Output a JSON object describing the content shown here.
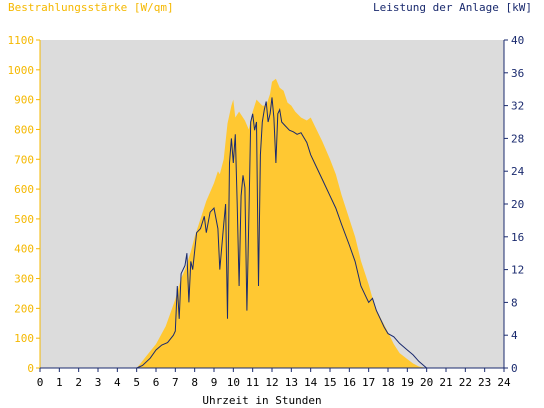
{
  "chart_data": {
    "type": "area",
    "left_axis_label": "Bestrahlungsstärke [W/qm]",
    "right_axis_label": "Leistung der Anlage [kW]",
    "xlabel": "Uhrzeit in Stunden",
    "xlim": [
      0,
      24
    ],
    "ylim_left": [
      0,
      1100
    ],
    "ylim_right": [
      0,
      40
    ],
    "x_ticks": [
      "0",
      "1",
      "2",
      "3",
      "4",
      "5",
      "6",
      "7",
      "8",
      "9",
      "10",
      "11",
      "12",
      "13",
      "14",
      "15",
      "16",
      "17",
      "18",
      "19",
      "20",
      "21",
      "22",
      "23",
      "24"
    ],
    "y_left_ticks": [
      "0",
      "100",
      "200",
      "300",
      "400",
      "500",
      "600",
      "700",
      "800",
      "900",
      "1000",
      "1100"
    ],
    "y_right_ticks": [
      "0",
      "4",
      "8",
      "12",
      "16",
      "20",
      "24",
      "28",
      "32",
      "36",
      "40"
    ],
    "grid": false,
    "colors": {
      "plot_background": "#dcdcdc",
      "irradiance_fill": "#ffc832",
      "irradiance_axis": "#f5b800",
      "power_line": "#1a2a6e",
      "axis_text": "#000000"
    },
    "series": [
      {
        "name": "Bestrahlungsstärke [W/qm]",
        "axis": "left",
        "style": "area",
        "x": [
          0,
          5.0,
          5.2,
          5.5,
          6.0,
          6.5,
          7.0,
          7.3,
          7.5,
          7.8,
          8.0,
          8.3,
          8.6,
          9.0,
          9.2,
          9.3,
          9.5,
          9.7,
          9.9,
          10.0,
          10.1,
          10.3,
          10.6,
          10.8,
          11.0,
          11.2,
          11.5,
          11.7,
          11.9,
          12.0,
          12.2,
          12.4,
          12.6,
          12.8,
          13.0,
          13.2,
          13.5,
          13.8,
          14.0,
          14.3,
          14.6,
          15.0,
          15.3,
          15.6,
          16.0,
          16.3,
          16.6,
          17.0,
          17.3,
          17.6,
          18.0,
          18.3,
          18.6,
          19.0,
          19.3,
          19.6,
          20.0,
          20.3,
          24
        ],
        "y": [
          0,
          0,
          15,
          40,
          80,
          140,
          230,
          300,
          330,
          390,
          440,
          500,
          560,
          620,
          660,
          650,
          700,
          820,
          880,
          900,
          840,
          860,
          830,
          800,
          860,
          900,
          880,
          880,
          920,
          960,
          970,
          940,
          930,
          890,
          880,
          860,
          840,
          830,
          840,
          800,
          760,
          700,
          650,
          580,
          500,
          440,
          360,
          280,
          210,
          170,
          120,
          80,
          50,
          30,
          15,
          5,
          0,
          0,
          0
        ]
      },
      {
        "name": "Leistung der Anlage [kW]",
        "axis": "right",
        "style": "line",
        "x": [
          0,
          5.0,
          5.3,
          5.7,
          6.0,
          6.3,
          6.6,
          6.9,
          7.0,
          7.1,
          7.2,
          7.3,
          7.5,
          7.6,
          7.7,
          7.8,
          7.9,
          8.1,
          8.3,
          8.5,
          8.6,
          8.8,
          9.0,
          9.2,
          9.3,
          9.5,
          9.6,
          9.7,
          9.8,
          9.9,
          10.0,
          10.1,
          10.2,
          10.3,
          10.4,
          10.5,
          10.6,
          10.7,
          10.8,
          10.9,
          11.0,
          11.1,
          11.2,
          11.3,
          11.4,
          11.5,
          11.6,
          11.7,
          11.8,
          11.9,
          12.0,
          12.1,
          12.2,
          12.3,
          12.4,
          12.5,
          12.7,
          12.9,
          13.1,
          13.3,
          13.5,
          13.8,
          14.0,
          14.3,
          14.6,
          15.0,
          15.3,
          15.6,
          16.0,
          16.3,
          16.6,
          16.9,
          17.0,
          17.2,
          17.4,
          17.6,
          17.8,
          18.0,
          18.3,
          18.6,
          19.0,
          19.3,
          19.6,
          19.9,
          20.0,
          24
        ],
        "y": [
          0,
          0,
          0.3,
          1.2,
          2.2,
          2.8,
          3.1,
          4.0,
          4.5,
          10.0,
          6.0,
          11.5,
          12.5,
          14.0,
          8.0,
          13.0,
          12.0,
          16.5,
          17.0,
          18.5,
          16.5,
          19.0,
          19.5,
          17.0,
          12.0,
          17.5,
          20.0,
          6.0,
          25.0,
          28.0,
          25.0,
          28.5,
          20.0,
          10.0,
          21.0,
          23.5,
          22.0,
          7.0,
          18.0,
          30.0,
          31.0,
          29.0,
          30.0,
          10.0,
          26.0,
          30.0,
          31.5,
          32.5,
          30.0,
          31.0,
          33.0,
          30.5,
          25.0,
          31.0,
          31.5,
          30.0,
          29.5,
          29.0,
          28.8,
          28.5,
          28.7,
          27.5,
          26.0,
          24.5,
          23.0,
          21.0,
          19.5,
          17.5,
          15.0,
          13.0,
          10.0,
          8.5,
          8.0,
          8.5,
          7.0,
          6.0,
          5.0,
          4.2,
          3.8,
          3.0,
          2.2,
          1.6,
          0.8,
          0.2,
          0,
          0
        ]
      }
    ]
  }
}
